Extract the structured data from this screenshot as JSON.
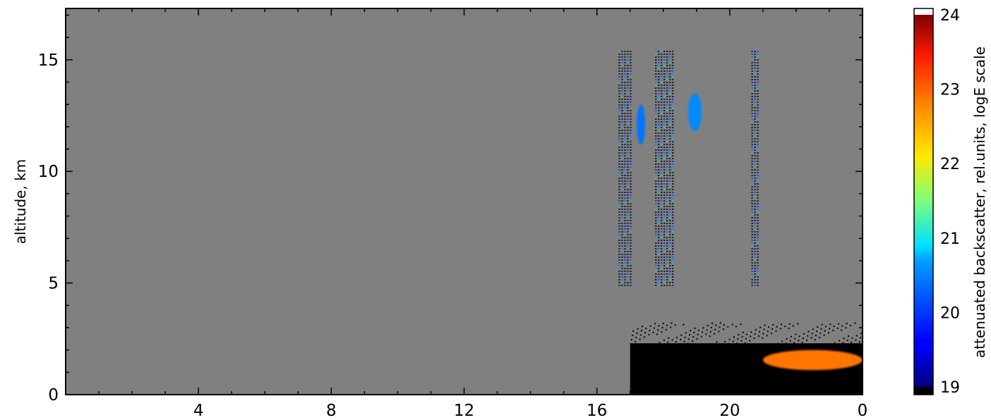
{
  "chart_data": {
    "type": "heatmap",
    "title": "",
    "xlabel": "",
    "ylabel": "altitude, km",
    "x_ticks": [
      4,
      8,
      12,
      16,
      20,
      0
    ],
    "y_ticks": [
      0,
      5,
      10,
      15
    ],
    "xlim": [
      0,
      24
    ],
    "ylim": [
      0,
      17.3
    ],
    "no_data_color": "#808080",
    "colorbar": {
      "label": "attenuated backscatter, rel.units, logE scale",
      "ticks": [
        19,
        20,
        21,
        22,
        23,
        24
      ],
      "range": [
        19,
        24
      ],
      "colormap": "jet",
      "under_color": "#000000",
      "over_color": "#ffffff"
    },
    "features": [
      {
        "name": "cirrus column",
        "x_start": 16.65,
        "x_end": 17.0,
        "y_bottom": 4.9,
        "y_top": 15.4,
        "value": 19.8
      },
      {
        "name": "cirrus column",
        "x_start": 17.75,
        "x_end": 18.3,
        "y_bottom": 4.9,
        "y_top": 15.4,
        "value": 19.9
      },
      {
        "name": "cirrus column",
        "x_start": 20.65,
        "x_end": 20.9,
        "y_bottom": 4.9,
        "y_top": 15.4,
        "value": 19.8
      },
      {
        "name": "cloud patch",
        "x_start": 17.2,
        "x_end": 17.45,
        "y_bottom": 11.2,
        "y_top": 13.0,
        "value": 20.2
      },
      {
        "name": "cloud patch",
        "x_start": 18.75,
        "x_end": 19.15,
        "y_bottom": 11.8,
        "y_top": 13.5,
        "value": 20.3
      },
      {
        "name": "boundary layer",
        "x_start": 17.0,
        "x_end": 24.0,
        "y_bottom": 0,
        "y_top": 2.3,
        "value": 18.5
      },
      {
        "name": "aerosol layer",
        "x_start": 21.0,
        "x_end": 24.0,
        "y_bottom": 1.1,
        "y_top": 2.0,
        "value": 22.8
      }
    ]
  }
}
